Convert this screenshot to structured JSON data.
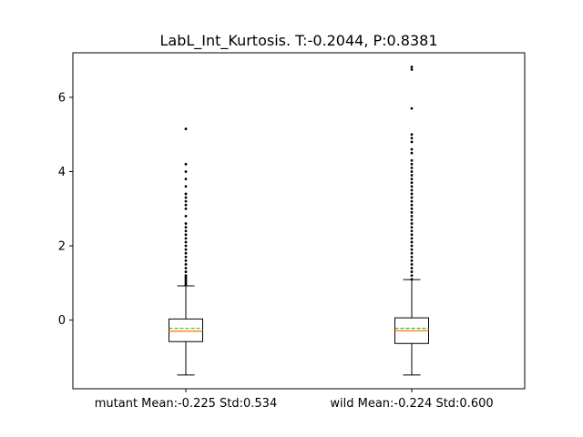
{
  "chart_data": {
    "type": "box",
    "title": "LabL_Int_Kurtosis. T:-0.2044, P:0.8381",
    "xlabel": "",
    "ylabel": "",
    "ylim": [
      -1.85,
      7.2
    ],
    "yticks": [
      0,
      2,
      4,
      6
    ],
    "categories": [
      "mutant Mean:-0.225 Std:0.534",
      "wild Mean:-0.224 Std:0.600"
    ],
    "boxes": [
      {
        "label": "mutant Mean:-0.225 Std:0.534",
        "whisker_low": -1.48,
        "q1": -0.58,
        "median": -0.3,
        "mean": -0.225,
        "q3": 0.03,
        "whisker_high": 0.92,
        "fliers": [
          0.95,
          1.0,
          1.05,
          1.1,
          1.15,
          1.2,
          1.3,
          1.4,
          1.5,
          1.6,
          1.7,
          1.8,
          1.9,
          2.0,
          2.1,
          2.2,
          2.3,
          2.4,
          2.5,
          2.6,
          2.8,
          3.0,
          3.1,
          3.2,
          3.3,
          3.4,
          3.6,
          3.8,
          4.0,
          4.2,
          5.15
        ]
      },
      {
        "label": "wild Mean:-0.224 Std:0.600",
        "whisker_low": -1.48,
        "q1": -0.63,
        "median": -0.29,
        "mean": -0.224,
        "q3": 0.06,
        "whisker_high": 1.09,
        "fliers": [
          1.1,
          1.2,
          1.3,
          1.4,
          1.5,
          1.6,
          1.7,
          1.8,
          1.9,
          2.0,
          2.1,
          2.2,
          2.3,
          2.4,
          2.5,
          2.6,
          2.7,
          2.8,
          2.9,
          3.0,
          3.1,
          3.2,
          3.3,
          3.4,
          3.5,
          3.6,
          3.7,
          3.8,
          3.9,
          4.0,
          4.1,
          4.2,
          4.3,
          4.5,
          4.6,
          4.8,
          4.9,
          5.0,
          5.7,
          6.75,
          6.82
        ]
      }
    ],
    "colors": {
      "median": "#ff7f0e",
      "mean": "#2ca02c",
      "box": "#000000",
      "flier": "#000000"
    }
  }
}
